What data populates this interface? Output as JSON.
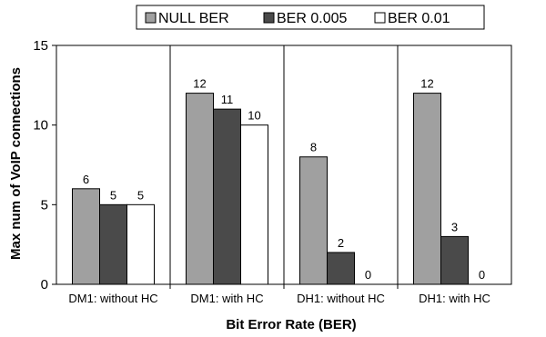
{
  "chart_data": {
    "type": "bar",
    "categories": [
      "DM1: without HC",
      "DM1: with HC",
      "DH1: without HC",
      "DH1: with HC"
    ],
    "series": [
      {
        "name": "NULL BER",
        "values": [
          6,
          12,
          8,
          12
        ]
      },
      {
        "name": "BER 0.005",
        "values": [
          5,
          11,
          2,
          3
        ]
      },
      {
        "name": "BER 0.01",
        "values": [
          5,
          10,
          0,
          0
        ]
      }
    ],
    "series_colors": [
      "#a0a0a0",
      "#4a4a4a",
      "#ffffff"
    ],
    "xlabel": "Bit Error Rate (BER)",
    "ylabel": "Max num of VoIP connections",
    "ylim": [
      0,
      15
    ],
    "yticks": [
      0,
      5,
      10,
      15
    ],
    "legend_position": "top",
    "grid": false,
    "data_labels": true
  }
}
